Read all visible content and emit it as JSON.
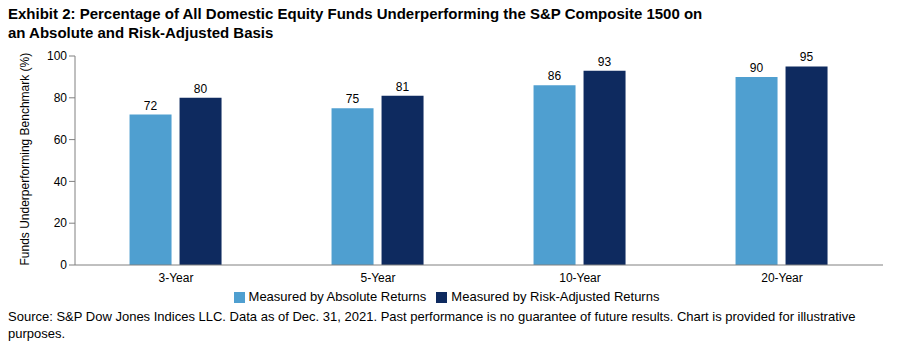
{
  "chart_data": {
    "type": "bar",
    "title": "Exhibit 2: Percentage of All Domestic Equity Funds Underperforming the S&P Composite 1500 on an Absolute and Risk-Adjusted Basis",
    "y_label": "Funds Underperforming Benchmark (%)",
    "annotations": [
      "Source: S&P Dow Jones Indices LLC.  Data as of Dec. 31, 2021.  Past performance is no guarantee of future results.  Chart is provided for illustrative purposes."
    ],
    "categories": [
      "3-Year",
      "5-Year",
      "10-Year",
      "20-Year"
    ],
    "series": [
      {
        "name": "Measured by Absolute Returns",
        "color": "#4f9fd0",
        "values": [
          72,
          75,
          86,
          90
        ]
      },
      {
        "name": "Measured by Risk-Adjusted Returns",
        "color": "#0e2a5f",
        "values": [
          80,
          81,
          93,
          95
        ]
      }
    ],
    "ylim": [
      0,
      100
    ],
    "yticks": [
      0,
      20,
      40,
      60,
      80,
      100
    ],
    "grid": false,
    "legend": "bottom",
    "data_labels": true
  }
}
